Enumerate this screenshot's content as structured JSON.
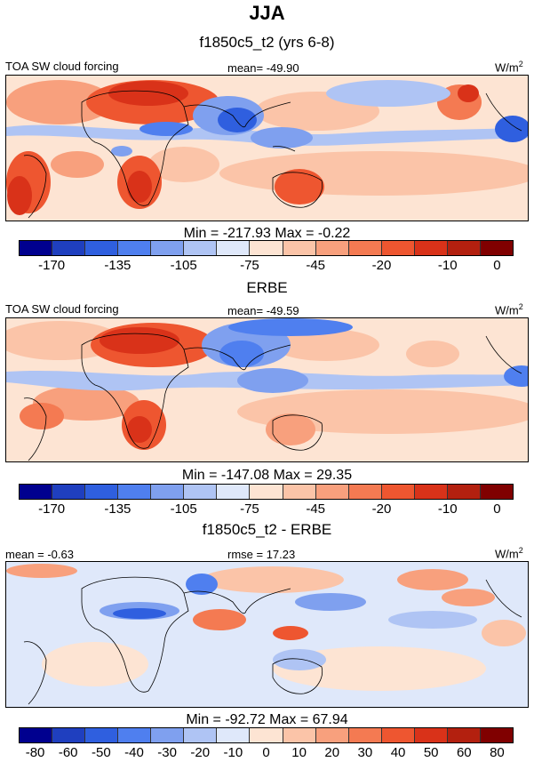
{
  "title": "JJA",
  "panels": [
    {
      "subtitle": "f1850c5_t2 (yrs 6-8)",
      "left_label": "TOA SW cloud forcing",
      "center_label": "mean= -49.90",
      "unit": "W/m",
      "unit_exp": "2",
      "stats": "Min = -217.93 Max =  -0.22"
    },
    {
      "subtitle": "ERBE",
      "left_label": "TOA SW cloud forcing",
      "center_label": "mean= -49.59",
      "unit": "W/m",
      "unit_exp": "2",
      "stats": "Min = -147.08 Max =  29.35"
    },
    {
      "subtitle": "f1850c5_t2 - ERBE",
      "left_label": "mean =  -0.63",
      "center_label": "rmse =  17.23",
      "unit": "W/m",
      "unit_exp": "2",
      "stats": "Min = -92.72 Max =  67.94"
    }
  ],
  "colorbars": {
    "abs": {
      "colors": [
        "#00008f",
        "#1f3fbf",
        "#2f5fdf",
        "#4f7fef",
        "#7fa0ef",
        "#afc4f4",
        "#dfe8fa",
        "#fde4d3",
        "#fbc4a8",
        "#f8a07d",
        "#f47a52",
        "#ee5630",
        "#d93219",
        "#b3200f",
        "#800000"
      ],
      "ticks": [
        "-170",
        "-135",
        "-105",
        "-75",
        "-45",
        "-20",
        "-10",
        "0"
      ]
    },
    "diff": {
      "colors": [
        "#00008f",
        "#1f3fbf",
        "#2f5fdf",
        "#4f7fef",
        "#7fa0ef",
        "#afc4f4",
        "#dfe8fa",
        "#fde4d3",
        "#fbc4a8",
        "#f8a07d",
        "#f47a52",
        "#ee5630",
        "#d93219",
        "#b3200f",
        "#800000"
      ],
      "ticks": [
        "-80",
        "-60",
        "-50",
        "-40",
        "-30",
        "-20",
        "-10",
        "0",
        "10",
        "20",
        "30",
        "40",
        "50",
        "60",
        "80"
      ]
    }
  }
}
